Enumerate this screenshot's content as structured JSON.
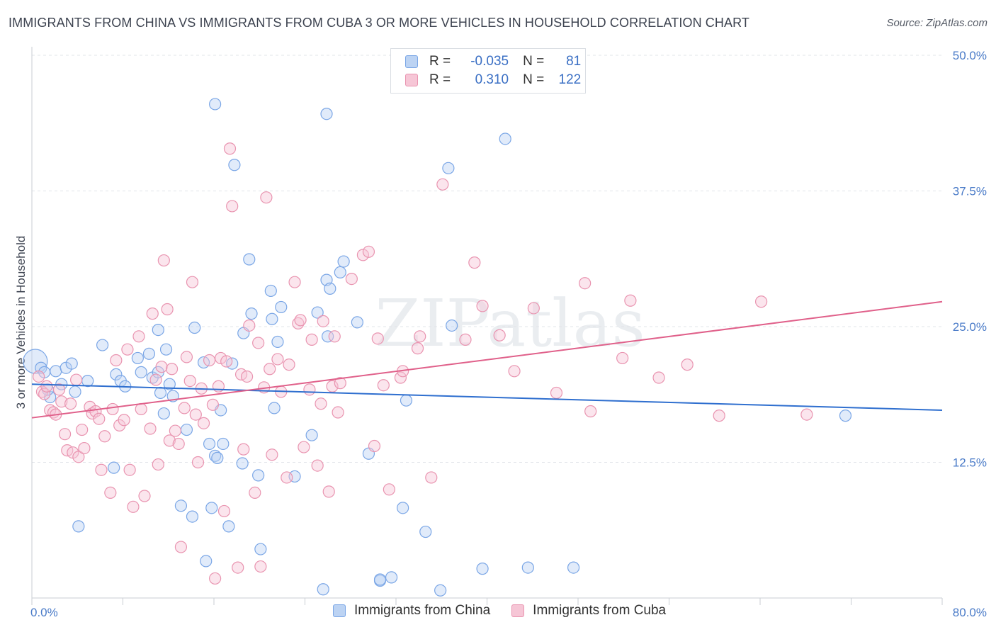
{
  "title": "IMMIGRANTS FROM CHINA VS IMMIGRANTS FROM CUBA 3 OR MORE VEHICLES IN HOUSEHOLD CORRELATION CHART",
  "source": "Source: ZipAtlas.com",
  "watermark": "ZIPatlas",
  "legend": {
    "rows": [
      {
        "r_label": "R =",
        "r_value": "-0.035",
        "n_label": "N =",
        "n_value": "81"
      },
      {
        "r_label": "R =",
        "r_value": "0.310",
        "n_label": "N =",
        "n_value": "122"
      }
    ]
  },
  "chart_data": {
    "type": "scatter",
    "title": "IMMIGRANTS FROM CHINA VS IMMIGRANTS FROM CUBA 3 OR MORE VEHICLES IN HOUSEHOLD CORRELATION CHART",
    "xlabel": "",
    "ylabel": "3 or more Vehicles in Household",
    "xlim": [
      0,
      80
    ],
    "ylim": [
      0,
      50
    ],
    "x_tick_labels": [
      "0.0%",
      "80.0%"
    ],
    "y_ticks": [
      12.5,
      25.0,
      37.5,
      50.0
    ],
    "y_tick_labels": [
      "12.5%",
      "25.0%",
      "37.5%",
      "50.0%"
    ],
    "grid": true,
    "legend_position": "top-center",
    "series": [
      {
        "name": "Immigrants from China",
        "color": "#7aa6e6",
        "fill": "#bcd3f3",
        "trend_color": "#2f6fcf",
        "r": -0.035,
        "n": 81,
        "trend": {
          "x": [
            0,
            80
          ],
          "y": [
            19.7,
            17.3
          ]
        },
        "points": [
          [
            0.3,
            21.8
          ],
          [
            0.8,
            21.2
          ],
          [
            1.1,
            20.8
          ],
          [
            1.6,
            18.5
          ],
          [
            1.4,
            19.2
          ],
          [
            2.1,
            20.9
          ],
          [
            2.6,
            19.7
          ],
          [
            3.0,
            21.2
          ],
          [
            3.5,
            21.6
          ],
          [
            3.8,
            19.0
          ],
          [
            4.9,
            20.0
          ],
          [
            6.2,
            23.3
          ],
          [
            7.4,
            20.6
          ],
          [
            7.8,
            20.0
          ],
          [
            8.2,
            19.5
          ],
          [
            9.3,
            22.1
          ],
          [
            9.6,
            20.8
          ],
          [
            10.3,
            22.5
          ],
          [
            10.6,
            20.3
          ],
          [
            11.1,
            24.7
          ],
          [
            11.1,
            20.8
          ],
          [
            11.3,
            18.9
          ],
          [
            11.6,
            17.0
          ],
          [
            12.1,
            19.7
          ],
          [
            12.4,
            18.6
          ],
          [
            13.1,
            8.5
          ],
          [
            13.6,
            15.5
          ],
          [
            14.1,
            7.5
          ],
          [
            14.3,
            24.9
          ],
          [
            15.1,
            21.7
          ],
          [
            15.3,
            3.4
          ],
          [
            15.6,
            14.2
          ],
          [
            15.8,
            8.3
          ],
          [
            16.1,
            13.1
          ],
          [
            16.1,
            45.5
          ],
          [
            16.3,
            12.9
          ],
          [
            16.6,
            17.3
          ],
          [
            16.8,
            14.2
          ],
          [
            17.3,
            6.6
          ],
          [
            17.6,
            21.6
          ],
          [
            17.8,
            39.9
          ],
          [
            18.5,
            12.4
          ],
          [
            18.6,
            24.4
          ],
          [
            19.1,
            31.2
          ],
          [
            19.3,
            26.2
          ],
          [
            19.9,
            11.3
          ],
          [
            20.1,
            4.5
          ],
          [
            21.0,
            28.3
          ],
          [
            21.1,
            25.7
          ],
          [
            21.3,
            17.5
          ],
          [
            21.6,
            23.6
          ],
          [
            21.9,
            26.8
          ],
          [
            23.1,
            11.2
          ],
          [
            24.6,
            15.0
          ],
          [
            25.1,
            26.3
          ],
          [
            25.9,
            29.3
          ],
          [
            25.9,
            44.6
          ],
          [
            26.0,
            24.1
          ],
          [
            26.2,
            28.5
          ],
          [
            27.1,
            30.0
          ],
          [
            27.4,
            31.0
          ],
          [
            28.6,
            25.4
          ],
          [
            29.6,
            13.3
          ],
          [
            30.6,
            1.6
          ],
          [
            30.6,
            1.7
          ],
          [
            31.6,
            1.9
          ],
          [
            32.6,
            8.3
          ],
          [
            32.9,
            18.2
          ],
          [
            34.6,
            6.1
          ],
          [
            35.9,
            0.7
          ],
          [
            36.6,
            39.6
          ],
          [
            36.9,
            25.1
          ],
          [
            39.6,
            2.7
          ],
          [
            41.6,
            42.3
          ],
          [
            43.6,
            2.8
          ],
          [
            47.6,
            2.8
          ],
          [
            71.5,
            16.8
          ],
          [
            25.6,
            0.8
          ],
          [
            7.2,
            12.0
          ],
          [
            4.1,
            6.6
          ],
          [
            11.8,
            22.9
          ]
        ]
      },
      {
        "name": "Immigrants from Cuba",
        "color": "#e994b0",
        "fill": "#f6c6d6",
        "trend_color": "#e0608a",
        "r": 0.31,
        "n": 122,
        "trend": {
          "x": [
            0,
            80
          ],
          "y": [
            16.6,
            27.3
          ]
        },
        "points": [
          [
            0.6,
            20.4
          ],
          [
            0.9,
            19.0
          ],
          [
            1.1,
            18.8
          ],
          [
            1.3,
            19.5
          ],
          [
            1.6,
            17.3
          ],
          [
            1.9,
            17.1
          ],
          [
            2.1,
            16.9
          ],
          [
            2.4,
            19.2
          ],
          [
            2.6,
            18.1
          ],
          [
            2.9,
            15.1
          ],
          [
            3.1,
            13.6
          ],
          [
            3.4,
            17.9
          ],
          [
            3.6,
            13.4
          ],
          [
            3.9,
            20.1
          ],
          [
            4.1,
            13.0
          ],
          [
            4.4,
            15.5
          ],
          [
            4.6,
            13.8
          ],
          [
            5.1,
            17.6
          ],
          [
            5.3,
            17.0
          ],
          [
            5.6,
            17.2
          ],
          [
            5.9,
            16.5
          ],
          [
            6.1,
            11.8
          ],
          [
            6.4,
            14.9
          ],
          [
            6.9,
            9.7
          ],
          [
            7.1,
            17.4
          ],
          [
            7.4,
            21.9
          ],
          [
            7.7,
            15.9
          ],
          [
            8.1,
            16.4
          ],
          [
            8.4,
            22.9
          ],
          [
            8.6,
            11.8
          ],
          [
            8.9,
            8.4
          ],
          [
            9.4,
            24.1
          ],
          [
            9.6,
            17.4
          ],
          [
            9.9,
            9.4
          ],
          [
            10.4,
            15.6
          ],
          [
            10.6,
            26.2
          ],
          [
            10.9,
            20.1
          ],
          [
            11.1,
            12.3
          ],
          [
            11.4,
            21.3
          ],
          [
            11.6,
            31.1
          ],
          [
            11.9,
            26.6
          ],
          [
            12.1,
            14.5
          ],
          [
            12.3,
            21.1
          ],
          [
            12.6,
            15.4
          ],
          [
            12.9,
            14.2
          ],
          [
            13.1,
            4.7
          ],
          [
            13.4,
            17.5
          ],
          [
            13.6,
            22.2
          ],
          [
            13.9,
            20.0
          ],
          [
            14.1,
            29.1
          ],
          [
            14.4,
            16.9
          ],
          [
            14.6,
            12.5
          ],
          [
            14.9,
            19.3
          ],
          [
            15.1,
            16.1
          ],
          [
            15.6,
            21.9
          ],
          [
            15.9,
            17.8
          ],
          [
            16.1,
            1.8
          ],
          [
            16.4,
            19.5
          ],
          [
            16.6,
            22.1
          ],
          [
            16.9,
            8.0
          ],
          [
            17.1,
            21.8
          ],
          [
            17.4,
            41.4
          ],
          [
            17.6,
            36.1
          ],
          [
            18.1,
            2.8
          ],
          [
            18.4,
            20.6
          ],
          [
            18.6,
            13.7
          ],
          [
            18.9,
            20.4
          ],
          [
            19.1,
            25.1
          ],
          [
            19.6,
            9.7
          ],
          [
            19.9,
            23.5
          ],
          [
            20.1,
            2.9
          ],
          [
            20.4,
            19.4
          ],
          [
            20.6,
            36.9
          ],
          [
            20.9,
            21.1
          ],
          [
            21.1,
            13.2
          ],
          [
            21.6,
            22.0
          ],
          [
            21.9,
            19.0
          ],
          [
            22.4,
            11.1
          ],
          [
            22.6,
            21.5
          ],
          [
            23.1,
            29.1
          ],
          [
            23.4,
            25.3
          ],
          [
            23.6,
            25.6
          ],
          [
            23.9,
            13.9
          ],
          [
            24.4,
            19.2
          ],
          [
            24.6,
            23.8
          ],
          [
            25.1,
            12.2
          ],
          [
            25.4,
            17.9
          ],
          [
            25.6,
            25.5
          ],
          [
            26.1,
            9.8
          ],
          [
            26.4,
            19.5
          ],
          [
            26.6,
            24.1
          ],
          [
            26.9,
            17.1
          ],
          [
            27.1,
            19.8
          ],
          [
            28.1,
            29.4
          ],
          [
            29.1,
            31.6
          ],
          [
            29.6,
            31.9
          ],
          [
            30.1,
            14.0
          ],
          [
            30.4,
            23.9
          ],
          [
            30.9,
            19.6
          ],
          [
            31.4,
            10.0
          ],
          [
            32.4,
            20.3
          ],
          [
            32.6,
            20.9
          ],
          [
            33.9,
            23.0
          ],
          [
            34.1,
            24.1
          ],
          [
            35.1,
            11.1
          ],
          [
            36.1,
            38.1
          ],
          [
            38.1,
            23.8
          ],
          [
            38.9,
            30.9
          ],
          [
            39.6,
            26.9
          ],
          [
            41.1,
            24.2
          ],
          [
            42.4,
            20.9
          ],
          [
            44.1,
            26.7
          ],
          [
            46.1,
            18.9
          ],
          [
            48.6,
            29.0
          ],
          [
            49.1,
            17.2
          ],
          [
            51.9,
            22.1
          ],
          [
            52.6,
            27.4
          ],
          [
            55.1,
            20.3
          ],
          [
            57.6,
            21.5
          ],
          [
            60.4,
            16.8
          ],
          [
            64.1,
            27.3
          ],
          [
            68.1,
            16.9
          ]
        ]
      }
    ]
  },
  "bottom_legend": {
    "items": [
      {
        "label": "Immigrants from China"
      },
      {
        "label": "Immigrants from Cuba"
      }
    ]
  }
}
